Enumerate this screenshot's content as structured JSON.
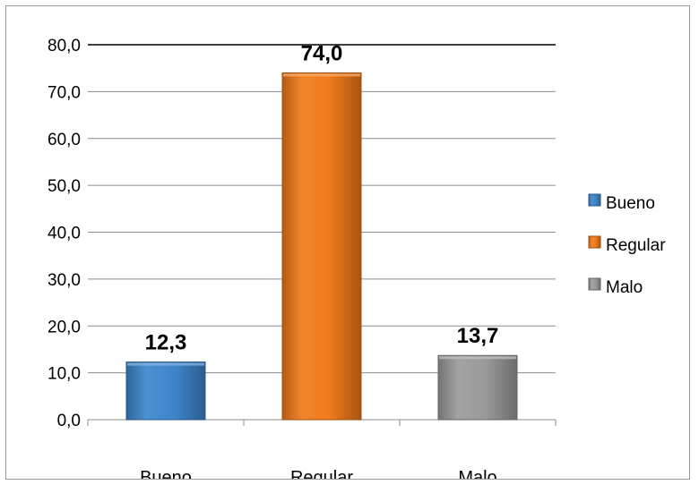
{
  "chart_data": {
    "type": "bar",
    "title": "",
    "xlabel": "",
    "ylabel": "",
    "categories": [
      "Bueno",
      "Regular",
      "Malo"
    ],
    "values": [
      12.3,
      74.0,
      13.7
    ],
    "data_labels": [
      "12,3",
      "74,0",
      "13,7"
    ],
    "colors": [
      "#3d86cc",
      "#f07a1a",
      "#9a9a9a"
    ],
    "ylim": [
      0,
      80
    ],
    "y_ticks": [
      0,
      10,
      20,
      30,
      40,
      50,
      60,
      70,
      80
    ],
    "y_tick_labels": [
      "0,0",
      "10,0",
      "20,0",
      "30,0",
      "40,0",
      "50,0",
      "60,0",
      "70,0",
      "80,0"
    ],
    "grid": true,
    "legend": {
      "position": "right",
      "entries": [
        "Bueno",
        "Regular",
        "Malo"
      ]
    }
  }
}
